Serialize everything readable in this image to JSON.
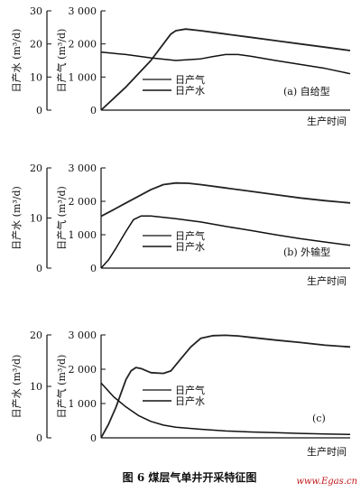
{
  "figure_caption": "图 6    煤层气单井开采特征图",
  "watermark": "www.Egas.cn",
  "chart_data": [
    {
      "type": "line",
      "panel_label": "(a) 自给型",
      "xlabel": "生产时间",
      "ylabel_left": "日产水 (m³/d)",
      "ylabel_right": "日产气 (m³/d)",
      "ylim_left": [
        0,
        30
      ],
      "ylim_right": [
        0,
        3000
      ],
      "yticks_left": [
        "0",
        "10",
        "20",
        "30"
      ],
      "yticks_right": [
        "0",
        "1 000",
        "2 000",
        "3 000"
      ],
      "legend": [
        "日产气",
        "日产水"
      ],
      "series": [
        {
          "name": "日产气",
          "axis": "right",
          "color": "#222222",
          "x": [
            0,
            10,
            20,
            25,
            28,
            30,
            34,
            40,
            50,
            60,
            70,
            80,
            90,
            100
          ],
          "y": [
            0,
            700,
            1500,
            2000,
            2300,
            2400,
            2450,
            2400,
            2300,
            2200,
            2100,
            2000,
            1900,
            1800
          ]
        },
        {
          "name": "日产水",
          "axis": "right",
          "color": "#111111",
          "x": [
            0,
            10,
            20,
            30,
            40,
            45,
            50,
            55,
            60,
            70,
            80,
            90,
            100
          ],
          "y": [
            1750,
            1680,
            1580,
            1500,
            1550,
            1620,
            1680,
            1680,
            1630,
            1500,
            1380,
            1260,
            1100
          ]
        }
      ]
    },
    {
      "type": "line",
      "panel_label": "(b) 外输型",
      "xlabel": "生产时间",
      "ylabel_left": "日产水 (m³/d)",
      "ylabel_right": "日产气 (m³/d)",
      "ylim_left": [
        0,
        20
      ],
      "ylim_right": [
        0,
        3000
      ],
      "yticks_left": [
        "0",
        "10",
        "20"
      ],
      "yticks_right": [
        "0",
        "1 000",
        "2 000",
        "3 000"
      ],
      "legend": [
        "日产气",
        "日产水"
      ],
      "series": [
        {
          "name": "日产气",
          "axis": "right",
          "color": "#222222",
          "x": [
            0,
            5,
            10,
            15,
            20,
            25,
            30,
            35,
            40,
            50,
            60,
            70,
            80,
            90,
            100
          ],
          "y": [
            1550,
            1750,
            1950,
            2150,
            2350,
            2500,
            2550,
            2540,
            2500,
            2400,
            2300,
            2200,
            2100,
            2020,
            1950
          ]
        },
        {
          "name": "日产水",
          "axis": "right",
          "color": "#111111",
          "x": [
            0,
            3,
            6,
            10,
            13,
            16,
            20,
            25,
            30,
            40,
            50,
            60,
            70,
            80,
            90,
            100
          ],
          "y": [
            0,
            250,
            600,
            1100,
            1450,
            1560,
            1560,
            1520,
            1480,
            1380,
            1250,
            1130,
            1000,
            880,
            780,
            680
          ]
        }
      ]
    },
    {
      "type": "line",
      "panel_label": "(c)",
      "xlabel": "生产时间",
      "ylabel_left": "日产水 (m³/d)",
      "ylabel_right": "日产气 (m³/d)",
      "ylim_left": [
        0,
        20
      ],
      "ylim_right": [
        0,
        3000
      ],
      "yticks_left": [
        "0",
        "10",
        "20"
      ],
      "yticks_right": [
        "0",
        "1 000",
        "2 000",
        "3 000"
      ],
      "legend": [
        "日产气",
        "日产水"
      ],
      "series": [
        {
          "name": "日产气",
          "axis": "right",
          "color": "#222222",
          "x": [
            0,
            3,
            6,
            8,
            10,
            12,
            14,
            16,
            20,
            25,
            28,
            32,
            36,
            40,
            45,
            50,
            55,
            60,
            70,
            80,
            90,
            100
          ],
          "y": [
            0,
            400,
            900,
            1300,
            1700,
            1950,
            2050,
            2020,
            1900,
            1880,
            1950,
            2300,
            2650,
            2900,
            2980,
            2990,
            2970,
            2930,
            2850,
            2780,
            2700,
            2650
          ]
        },
        {
          "name": "日产水",
          "axis": "right",
          "color": "#111111",
          "x": [
            0,
            5,
            10,
            15,
            20,
            25,
            30,
            40,
            50,
            60,
            70,
            80,
            90,
            100
          ],
          "y": [
            1600,
            1200,
            900,
            650,
            480,
            370,
            310,
            250,
            200,
            170,
            150,
            130,
            110,
            100
          ]
        }
      ]
    }
  ]
}
